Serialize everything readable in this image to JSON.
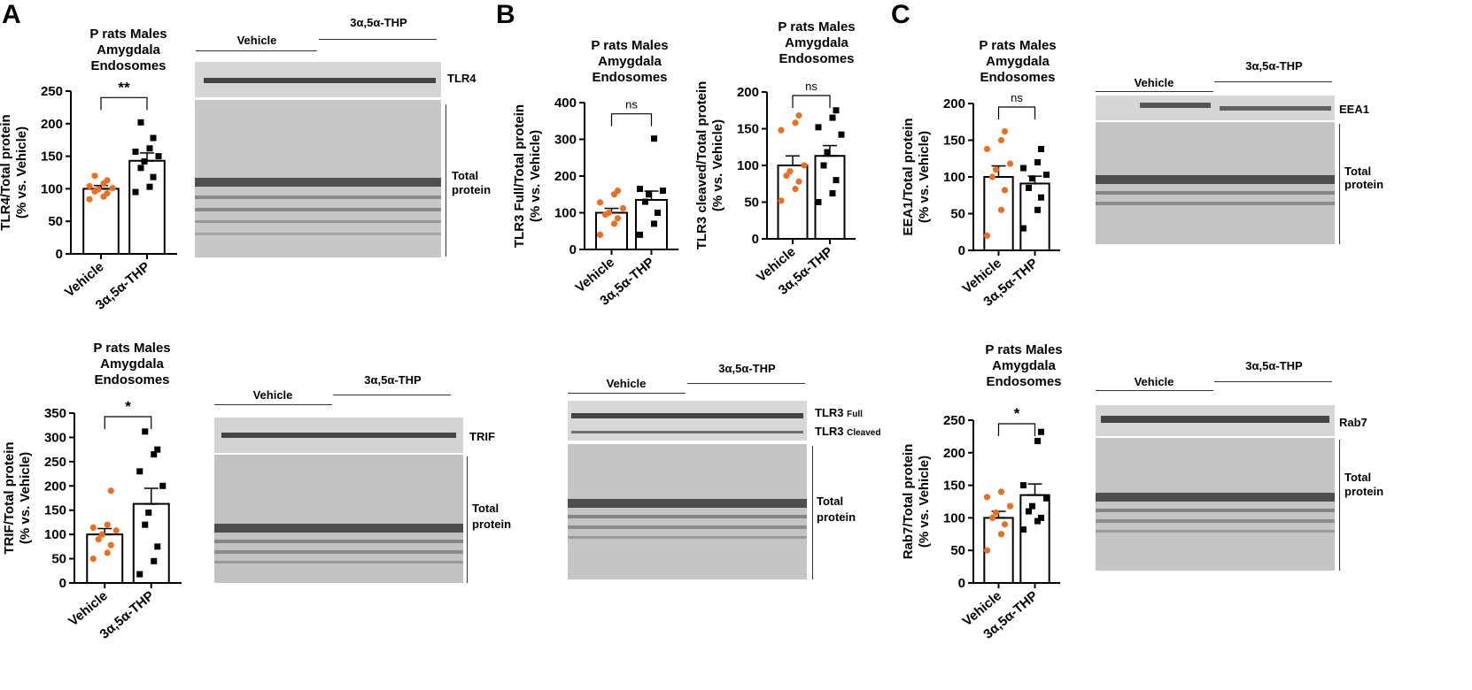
{
  "panels": [
    "A",
    "B",
    "C"
  ],
  "chart_data": [
    {
      "type": "bar",
      "title": "P rats Males Amygdala Endosomes",
      "title_lines": [
        "P rats Males",
        "Amygdala",
        "Endosomes"
      ],
      "ylabel_lines": [
        "TLR4/Total protein",
        "(% vs. Vehicle)"
      ],
      "categories": [
        "Vehicle",
        "3α,5α-THP"
      ],
      "values": [
        100,
        143
      ],
      "errors": [
        5,
        12
      ],
      "ylim": [
        0,
        250
      ],
      "yticks": [
        0,
        50,
        100,
        150,
        200,
        250
      ],
      "significance": "**",
      "points": [
        [
          84,
          88,
          93,
          96,
          99,
          101,
          104,
          108,
          113,
          120
        ],
        [
          95,
          103,
          118,
          132,
          142,
          150,
          157,
          162,
          178,
          202
        ]
      ],
      "point_colors": [
        "#ED6E1F",
        "#000000"
      ]
    },
    {
      "type": "bar",
      "title": "P rats Males Amygdala Endosomes",
      "title_lines": [
        "P rats Males",
        "Amygdala",
        "Endosomes"
      ],
      "ylabel_lines": [
        "TRIF/Total protein",
        "(% vs. Vehicle)"
      ],
      "categories": [
        "Vehicle",
        "3α,5α-THP"
      ],
      "values": [
        100,
        163
      ],
      "errors": [
        12,
        32
      ],
      "ylim": [
        0,
        350
      ],
      "yticks": [
        0,
        50,
        100,
        150,
        200,
        250,
        300,
        350
      ],
      "significance": "*",
      "points": [
        [
          50,
          62,
          78,
          90,
          100,
          108,
          114,
          120,
          190
        ],
        [
          18,
          45,
          75,
          120,
          145,
          200,
          230,
          265,
          275,
          312
        ]
      ],
      "point_colors": [
        "#ED6E1F",
        "#000000"
      ]
    },
    {
      "type": "bar",
      "title": "P rats Males Amygdala Endosomes",
      "title_lines": [
        "P rats Males",
        "Amygdala",
        "Endosomes"
      ],
      "ylabel_lines": [
        "TLR3 Full/Total protein",
        "(% vs. Vehicle)"
      ],
      "categories": [
        "Vehicle",
        "3α,5α-THP"
      ],
      "values": [
        100,
        135
      ],
      "errors": [
        12,
        24
      ],
      "ylim": [
        0,
        400
      ],
      "yticks": [
        0,
        100,
        200,
        300,
        400
      ],
      "significance": "ns",
      "points": [
        [
          40,
          70,
          85,
          95,
          100,
          112,
          128,
          150,
          160
        ],
        [
          40,
          70,
          100,
          130,
          150,
          160,
          165,
          302
        ]
      ],
      "point_colors": [
        "#ED6E1F",
        "#000000"
      ]
    },
    {
      "type": "bar",
      "title": "P rats Males Amygdala Endosomes",
      "title_lines": [
        "P rats Males",
        "Amygdala",
        "Endosomes"
      ],
      "ylabel_lines": [
        "TLR3 cleaved/Total protein",
        "(% vs. Vehicle)"
      ],
      "categories": [
        "Vehicle",
        "3α,5α-THP"
      ],
      "values": [
        100,
        113
      ],
      "errors": [
        13,
        14
      ],
      "ylim": [
        0,
        200
      ],
      "yticks": [
        0,
        50,
        100,
        150,
        200
      ],
      "significance": "ns",
      "points": [
        [
          52,
          68,
          78,
          86,
          92,
          100,
          148,
          158,
          168
        ],
        [
          50,
          62,
          80,
          100,
          118,
          142,
          152,
          165,
          175
        ]
      ],
      "point_colors": [
        "#ED6E1F",
        "#000000"
      ]
    },
    {
      "type": "bar",
      "title": "P rats Males Amygdala Endosomes",
      "title_lines": [
        "P rats Males",
        "Amygdala",
        "Endosomes"
      ],
      "ylabel_lines": [
        "EEA1/Total protein",
        "(% vs. Vehicle)"
      ],
      "categories": [
        "Vehicle",
        "3α,5α-THP"
      ],
      "values": [
        100,
        91
      ],
      "errors": [
        15,
        10
      ],
      "ylim": [
        0,
        200
      ],
      "yticks": [
        0,
        50,
        100,
        150,
        200
      ],
      "significance": "ns",
      "points": [
        [
          20,
          55,
          82,
          100,
          110,
          118,
          138,
          150,
          162
        ],
        [
          30,
          55,
          72,
          85,
          98,
          103,
          112,
          120,
          138
        ]
      ],
      "point_colors": [
        "#ED6E1F",
        "#000000"
      ]
    },
    {
      "type": "bar",
      "title": "P rats Males Amygdala Endosomes",
      "title_lines": [
        "P rats Males",
        "Amygdala",
        "Endosomes"
      ],
      "ylabel_lines": [
        "Rab7/Total protein",
        "(% vs. Vehicle)"
      ],
      "categories": [
        "Vehicle",
        "3α,5α-THP"
      ],
      "values": [
        100,
        135
      ],
      "errors": [
        10,
        17
      ],
      "ylim": [
        0,
        250
      ],
      "yticks": [
        0,
        50,
        100,
        150,
        200,
        250
      ],
      "significance": "*",
      "points": [
        [
          50,
          75,
          90,
          100,
          108,
          118,
          132,
          140
        ],
        [
          82,
          95,
          100,
          110,
          118,
          130,
          150,
          218,
          232
        ]
      ],
      "point_colors": [
        "#ED6E1F",
        "#000000"
      ]
    }
  ],
  "blots": [
    {
      "groups": [
        "Vehicle",
        "3α,5α-THP"
      ],
      "band_labels": [
        "TLR4"
      ],
      "total_label_lines": [
        "Total",
        "protein"
      ]
    },
    {
      "groups": [
        "Vehicle",
        "3α,5α-THP"
      ],
      "band_labels": [
        "TRIF"
      ],
      "total_label_lines": [
        "Total",
        "protein"
      ]
    },
    {
      "groups": [
        "Vehicle",
        "3α,5α-THP"
      ],
      "band_labels": [
        "TLR3",
        "TLR3"
      ],
      "band_sublabels": [
        "Full",
        "Cleaved"
      ],
      "total_label_lines": [
        "Total",
        "protein"
      ]
    },
    {
      "groups": [
        "Vehicle",
        "3α,5α-THP"
      ],
      "band_labels": [
        "EEA1"
      ],
      "total_label_lines": [
        "Total",
        "protein"
      ]
    },
    {
      "groups": [
        "Vehicle",
        "3α,5α-THP"
      ],
      "band_labels": [
        "Rab7"
      ],
      "total_label_lines": [
        "Total",
        "protein"
      ]
    }
  ]
}
